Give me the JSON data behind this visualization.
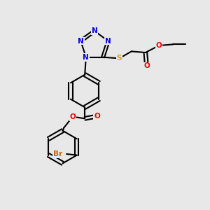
{
  "background_color": "#e8e8e8",
  "atom_colors": {
    "N": "#0000ee",
    "O": "#ff0000",
    "S": "#ccaa00",
    "Br": "#cc6600",
    "C": "#000000"
  },
  "bond_color": "#000000",
  "bond_width": 1.5,
  "figsize": [
    3.0,
    3.0
  ],
  "dpi": 100,
  "xlim": [
    1.0,
    9.5
  ],
  "ylim": [
    0.5,
    9.5
  ]
}
